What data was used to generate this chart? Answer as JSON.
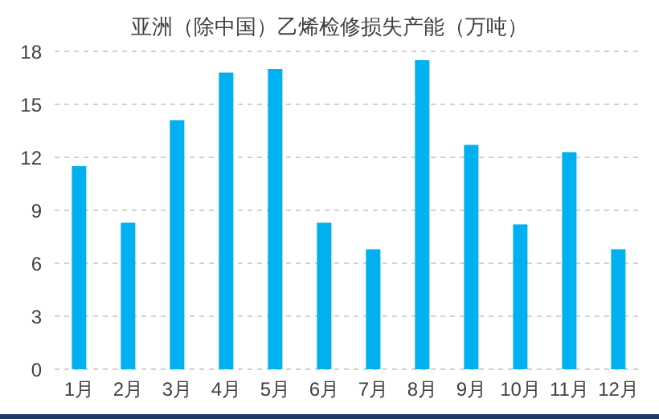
{
  "chart_data": {
    "type": "bar",
    "title": "亚洲（除中国）乙烯检修损失产能（万吨）",
    "categories": [
      "1月",
      "2月",
      "3月",
      "4月",
      "5月",
      "6月",
      "7月",
      "8月",
      "9月",
      "10月",
      "11月",
      "12月"
    ],
    "values": [
      11.5,
      8.3,
      14.1,
      16.8,
      17.0,
      8.3,
      6.8,
      17.5,
      12.7,
      8.2,
      12.3,
      6.8
    ],
    "color": "#00b0f0",
    "ylim": [
      0,
      18
    ],
    "yticks": [
      0,
      3,
      6,
      9,
      12,
      15,
      18
    ],
    "grid": "y"
  }
}
